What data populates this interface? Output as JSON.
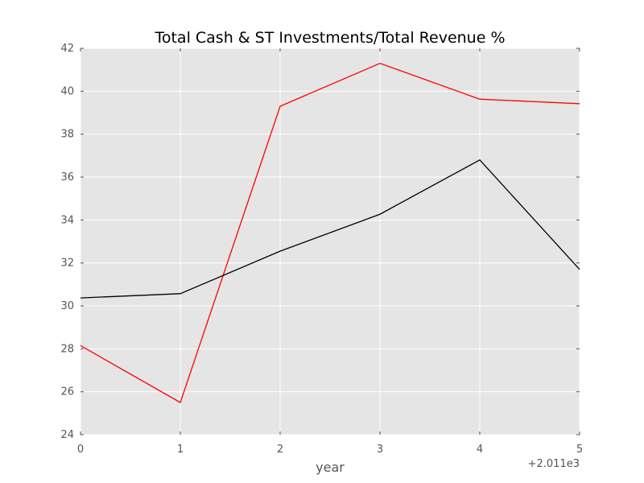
{
  "chart_data": {
    "type": "line",
    "title": "Total Cash & ST Investments/Total Revenue %",
    "xlabel": "year",
    "ylabel": "",
    "x_offset_label": "+2.011e3",
    "x": [
      0,
      1,
      2,
      3,
      4,
      5
    ],
    "x_tick_labels": [
      "0",
      "1",
      "2",
      "3",
      "4",
      "5"
    ],
    "xlim": [
      0,
      5
    ],
    "ylim": [
      24,
      42
    ],
    "y_ticks": [
      24,
      26,
      28,
      30,
      32,
      34,
      36,
      38,
      40,
      42
    ],
    "grid": true,
    "legend": "none",
    "background": "#e5e5e5",
    "series": [
      {
        "color": "#ff0000",
        "values": [
          28.15,
          25.5,
          39.3,
          41.3,
          39.63,
          39.42
        ]
      },
      {
        "color": "#000000",
        "values": [
          30.37,
          30.57,
          32.55,
          34.27,
          36.8,
          31.7
        ]
      }
    ]
  }
}
